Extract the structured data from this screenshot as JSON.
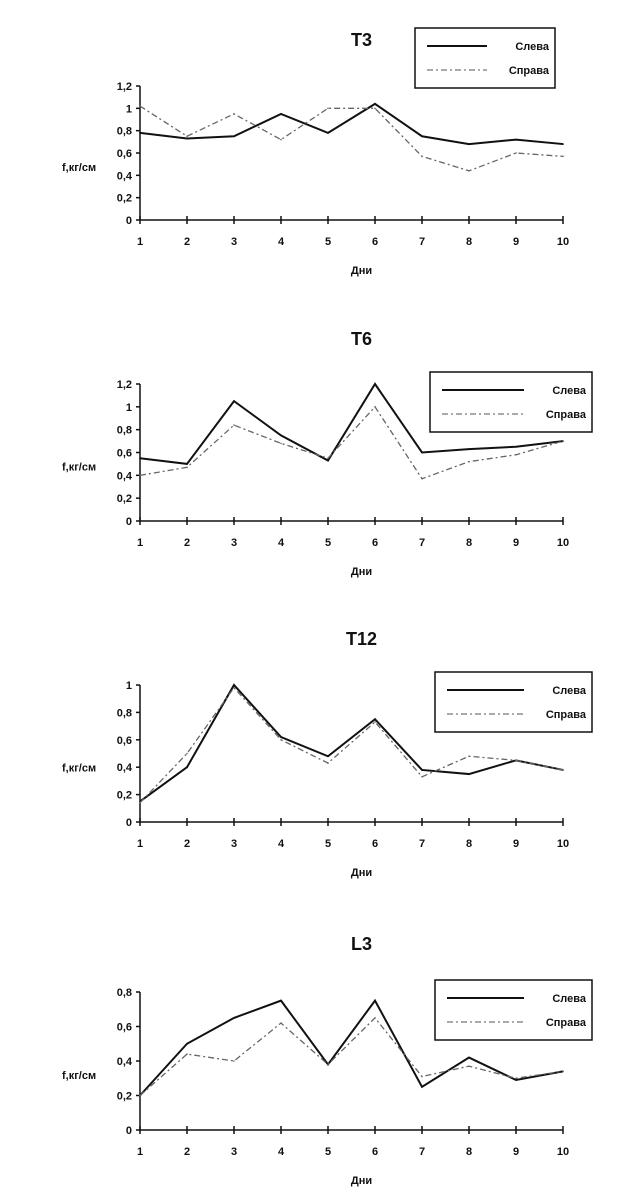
{
  "chart_data": [
    {
      "type": "line",
      "title": "T3",
      "xlabel": "Дни",
      "ylabel": "f,кг/см",
      "x": [
        1,
        2,
        3,
        4,
        5,
        6,
        7,
        8,
        9,
        10
      ],
      "ylim": [
        0,
        1.2
      ],
      "yticks": [
        "0",
        "0,2",
        "0,4",
        "0,6",
        "0,8",
        "1",
        "1,2"
      ],
      "legend": "top-right",
      "series": [
        {
          "name": "Слева",
          "style": "solid",
          "values": [
            0.78,
            0.73,
            0.75,
            0.95,
            0.78,
            1.04,
            0.75,
            0.68,
            0.72,
            0.68
          ]
        },
        {
          "name": "Справа",
          "style": "dash-dot",
          "values": [
            1.02,
            0.75,
            0.95,
            0.72,
            1.0,
            1.0,
            0.57,
            0.44,
            0.6,
            0.57
          ]
        }
      ]
    },
    {
      "type": "line",
      "title": "T6",
      "xlabel": "Дни",
      "ylabel": "f,кг/см",
      "x": [
        1,
        2,
        3,
        4,
        5,
        6,
        7,
        8,
        9,
        10
      ],
      "ylim": [
        0,
        1.2
      ],
      "yticks": [
        "0",
        "0,2",
        "0,4",
        "0,6",
        "0,8",
        "1",
        "1,2"
      ],
      "legend": "top-right",
      "series": [
        {
          "name": "Слева",
          "style": "solid",
          "values": [
            0.55,
            0.5,
            1.05,
            0.75,
            0.53,
            1.2,
            0.6,
            0.63,
            0.65,
            0.7
          ]
        },
        {
          "name": "Справа",
          "style": "dash-dot",
          "values": [
            0.4,
            0.47,
            0.84,
            0.68,
            0.55,
            1.0,
            0.37,
            0.52,
            0.58,
            0.7
          ]
        }
      ]
    },
    {
      "type": "line",
      "title": "T12",
      "xlabel": "Дни",
      "ylabel": "f,кг/см",
      "x": [
        1,
        2,
        3,
        4,
        5,
        6,
        7,
        8,
        9,
        10
      ],
      "ylim": [
        0,
        1
      ],
      "yticks": [
        "0",
        "0,2",
        "0,4",
        "0,6",
        "0,8",
        "1"
      ],
      "legend": "top-right",
      "series": [
        {
          "name": "Слева",
          "style": "solid",
          "values": [
            0.15,
            0.4,
            1.0,
            0.62,
            0.48,
            0.75,
            0.38,
            0.35,
            0.45,
            0.38
          ]
        },
        {
          "name": "Справа",
          "style": "dash-dot",
          "values": [
            0.14,
            0.5,
            0.98,
            0.6,
            0.43,
            0.73,
            0.33,
            0.48,
            0.45,
            0.38
          ]
        }
      ]
    },
    {
      "type": "line",
      "title": "L3",
      "xlabel": "Дни",
      "ylabel": "f,кг/см",
      "x": [
        1,
        2,
        3,
        4,
        5,
        6,
        7,
        8,
        9,
        10
      ],
      "ylim": [
        0,
        0.8
      ],
      "yticks": [
        "0",
        "0,2",
        "0,4",
        "0,6",
        "0,8"
      ],
      "legend": "top-right",
      "series": [
        {
          "name": "Слева",
          "style": "solid",
          "values": [
            0.2,
            0.5,
            0.65,
            0.75,
            0.38,
            0.75,
            0.25,
            0.42,
            0.29,
            0.34
          ]
        },
        {
          "name": "Справа",
          "style": "dash-dot",
          "values": [
            0.2,
            0.44,
            0.4,
            0.62,
            0.38,
            0.65,
            0.31,
            0.37,
            0.3,
            0.34
          ]
        }
      ]
    }
  ]
}
